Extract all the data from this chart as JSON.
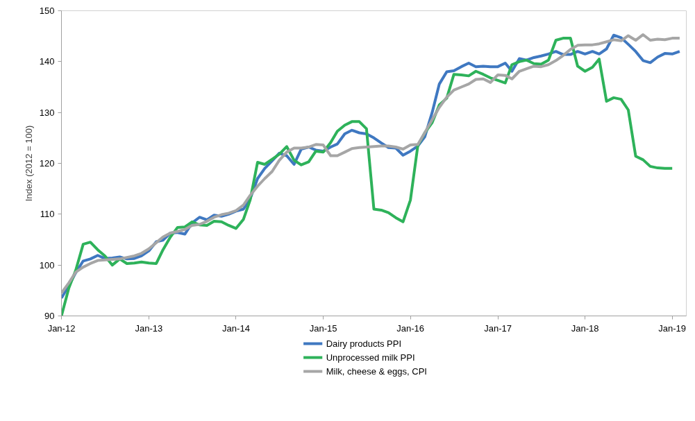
{
  "chart_data": {
    "type": "line",
    "ylabel": "Index (2012 = 100)",
    "x": [
      "2012-01",
      "2012-02",
      "2012-03",
      "2012-04",
      "2012-05",
      "2012-06",
      "2012-07",
      "2012-08",
      "2012-09",
      "2012-10",
      "2012-11",
      "2012-12",
      "2013-01",
      "2013-02",
      "2013-03",
      "2013-04",
      "2013-05",
      "2013-06",
      "2013-07",
      "2013-08",
      "2013-09",
      "2013-10",
      "2013-11",
      "2013-12",
      "2014-01",
      "2014-02",
      "2014-03",
      "2014-04",
      "2014-05",
      "2014-06",
      "2014-07",
      "2014-08",
      "2014-09",
      "2014-10",
      "2014-11",
      "2014-12",
      "2015-01",
      "2015-02",
      "2015-03",
      "2015-04",
      "2015-05",
      "2015-06",
      "2015-07",
      "2015-08",
      "2015-09",
      "2015-10",
      "2015-11",
      "2015-12",
      "2016-01",
      "2016-02",
      "2016-03",
      "2016-04",
      "2016-05",
      "2016-06",
      "2016-07",
      "2016-08",
      "2016-09",
      "2016-10",
      "2016-11",
      "2016-12",
      "2017-01",
      "2017-02",
      "2017-03",
      "2017-04",
      "2017-05",
      "2017-06",
      "2017-07",
      "2017-08",
      "2017-09",
      "2017-10",
      "2017-11",
      "2017-12",
      "2018-01",
      "2018-02",
      "2018-03",
      "2018-04",
      "2018-05",
      "2018-06",
      "2018-07",
      "2018-08",
      "2018-09",
      "2018-10",
      "2018-11",
      "2018-12",
      "2019-01",
      "2019-02"
    ],
    "xlim": [
      "2012-01",
      "2019-03"
    ],
    "xticks": [
      {
        "value": "2012-01",
        "label": "Jan-12"
      },
      {
        "value": "2013-01",
        "label": "Jan-13"
      },
      {
        "value": "2014-01",
        "label": "Jan-14"
      },
      {
        "value": "2015-01",
        "label": "Jan-15"
      },
      {
        "value": "2016-01",
        "label": "Jan-16"
      },
      {
        "value": "2017-01",
        "label": "Jan-17"
      },
      {
        "value": "2018-01",
        "label": "Jan-18"
      },
      {
        "value": "2019-01",
        "label": "Jan-19"
      }
    ],
    "ylim": [
      90,
      150
    ],
    "yticks": [
      90,
      100,
      110,
      120,
      130,
      140,
      150
    ],
    "grid": false,
    "legend": "bottom",
    "series": [
      {
        "name": "Dairy products PPI",
        "color": "#3f78c1",
        "values": [
          93.5,
          96,
          98.5,
          100.8,
          101.2,
          101.9,
          101.3,
          101.4,
          101.6,
          101.2,
          101.3,
          101.8,
          102.8,
          104.6,
          104.9,
          106.3,
          106.4,
          106.1,
          108.3,
          109.4,
          108.9,
          109.8,
          109.6,
          110,
          110.6,
          111,
          113,
          117,
          119,
          120.5,
          122,
          121.5,
          119.8,
          122.8,
          123.2,
          122.6,
          122.4,
          123.2,
          123.8,
          125.8,
          126.5,
          126,
          125.8,
          125,
          124,
          123.1,
          123,
          121.6,
          122.4,
          123.4,
          125.2,
          130,
          135.6,
          138,
          138.2,
          139,
          139.7,
          139,
          139.1,
          139,
          139,
          139.7,
          138.1,
          140.6,
          140.3,
          140.8,
          141.1,
          141.5,
          142,
          141.4,
          141.4,
          142,
          141.5,
          142,
          141.5,
          142.5,
          145.2,
          144.7,
          143.4,
          142,
          140.2,
          139.8,
          140.9,
          141.6,
          141.5,
          142
        ]
      },
      {
        "name": "Unprocessed milk PPI",
        "color": "#2eb25a",
        "values": [
          90,
          95.5,
          99,
          104.1,
          104.5,
          103,
          101.8,
          100,
          101.2,
          100.3,
          100.4,
          100.6,
          100.4,
          100.3,
          103,
          105.5,
          107.4,
          107.5,
          108.5,
          107.9,
          107.8,
          108.6,
          108.5,
          107.8,
          107.2,
          109,
          112.8,
          120.2,
          119.8,
          120.8,
          121.8,
          123.3,
          120.6,
          119.7,
          120.3,
          122.4,
          122.2,
          124.1,
          126.3,
          127.5,
          128.2,
          128.2,
          126.8,
          111,
          110.8,
          110.3,
          109.3,
          108.5,
          112.8,
          123.5,
          126,
          128,
          131.5,
          132.8,
          137.5,
          137.4,
          137.2,
          138.1,
          137.5,
          136.8,
          136.3,
          135.8,
          139.4,
          140,
          140.3,
          139.6,
          139.5,
          140.3,
          144.2,
          144.6,
          144.6,
          139.1,
          138.1,
          138.9,
          140.5,
          132.2,
          132.9,
          132.6,
          130.5,
          121.4,
          120.7,
          119.4,
          119.1,
          119,
          119,
          null
        ]
      },
      {
        "name": "Milk, cheese & eggs, CPI",
        "color": "#a6a6a6",
        "values": [
          94.5,
          96.5,
          98.6,
          99.6,
          100.3,
          100.9,
          101,
          101.1,
          101.2,
          101.5,
          101.8,
          102.3,
          103.2,
          104.4,
          105.5,
          106.3,
          106.6,
          107,
          107.8,
          108,
          108.6,
          109.4,
          109.9,
          110.2,
          110.7,
          111.8,
          113.7,
          115.5,
          117,
          118.4,
          120.6,
          122.2,
          123,
          123,
          123.2,
          123.7,
          123.6,
          121.5,
          121.5,
          122.2,
          122.9,
          123.1,
          123.2,
          123.3,
          123.4,
          123.4,
          123.2,
          122.8,
          123.6,
          123.7,
          126,
          128.6,
          131,
          133,
          134.4,
          135,
          135.6,
          136.5,
          136.6,
          135.9,
          137.4,
          137.3,
          136.6,
          138.1,
          138.6,
          139.1,
          139,
          139.4,
          140.2,
          141.2,
          142.4,
          143.2,
          143.3,
          143.3,
          143.5,
          143.9,
          144.3,
          144.1,
          145.1,
          144.2,
          145.3,
          144.2,
          144.4,
          144.3,
          144.6,
          144.6
        ]
      }
    ]
  }
}
